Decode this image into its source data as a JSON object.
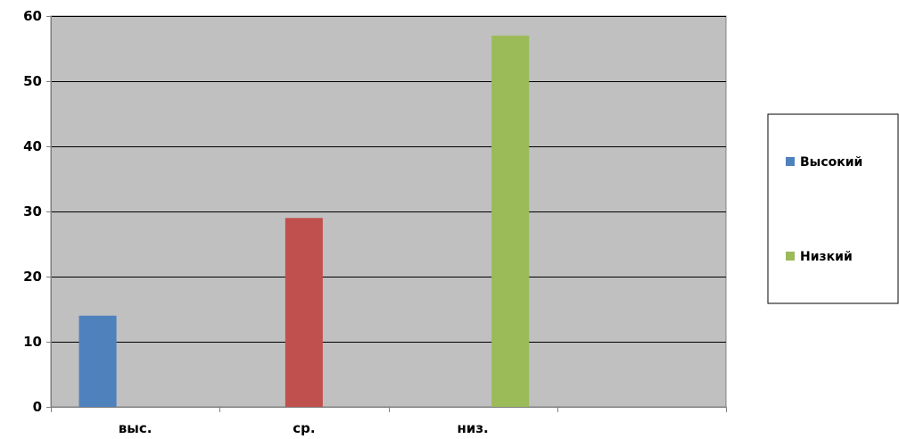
{
  "chart_data": {
    "type": "bar",
    "categories": [
      "выс.",
      "ср.",
      "низ.",
      ""
    ],
    "ylim": [
      0,
      60
    ],
    "yticks": [
      0,
      10,
      20,
      30,
      40,
      50,
      60
    ],
    "grid": true,
    "legend_placement": "right",
    "series": [
      {
        "name": "Высокий",
        "color": "#4F81BD",
        "values": [
          14,
          null,
          null,
          null
        ]
      },
      {
        "name": "",
        "color": "#C0504D",
        "values": [
          null,
          29,
          null,
          null
        ]
      },
      {
        "name": "Низкий",
        "color": "#9BBB59",
        "values": [
          null,
          null,
          57,
          null
        ]
      }
    ],
    "plot_background": "#C0C0C0",
    "title": "",
    "xlabel": "",
    "ylabel": ""
  }
}
